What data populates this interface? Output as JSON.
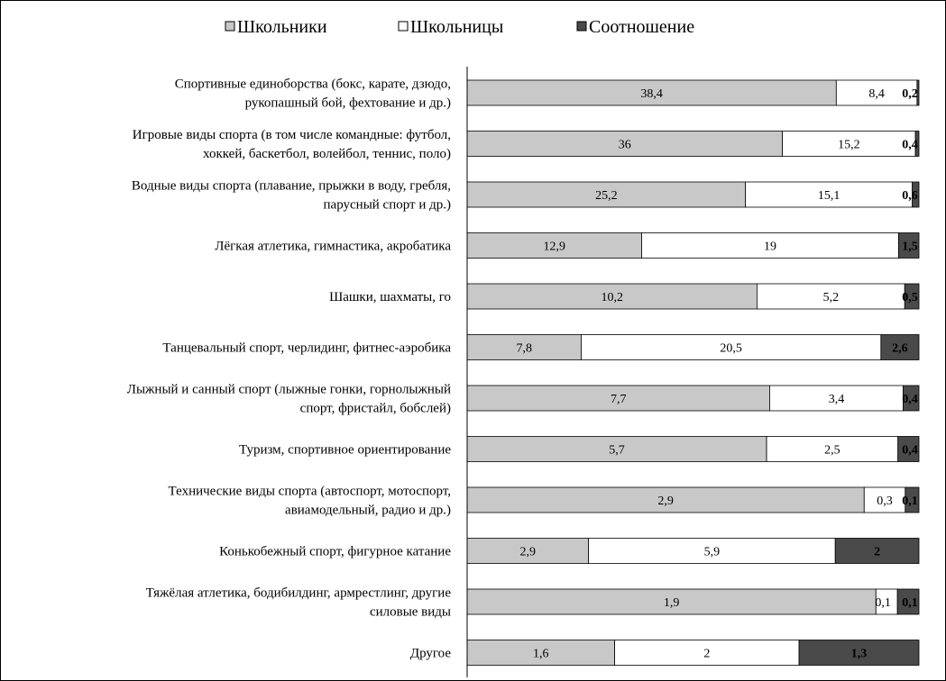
{
  "colors": {
    "boys": "#c8c8c8",
    "girls": "#ffffff",
    "ratio": "#4a4a4a",
    "stroke": "#000000",
    "axis": "#000000"
  },
  "legend": {
    "position": "top",
    "items": [
      {
        "key": "boys",
        "label": "Школьники"
      },
      {
        "key": "girls",
        "label": "Школьницы"
      },
      {
        "key": "ratio",
        "label": "Соотношение"
      }
    ]
  },
  "chart_data": {
    "type": "bar",
    "orientation": "horizontal",
    "stacked": "percent",
    "grid": false,
    "categories": [
      [
        "Спортивные единоборства (бокс, карате, дзюдо,",
        "рукопашный  бой, фехтование и др.)"
      ],
      [
        "Игровые виды спорта (в том числе командные: футбол,",
        "хоккей, баскетбол, волейбол,  теннис,  поло)"
      ],
      [
        "Водные виды спорта (плавание,  прыжки в воду, гребля,",
        "парусный спорт и др.)"
      ],
      [
        "Лёгкая атлетика, гимнастика,  акробатика"
      ],
      [
        "Шашки, шахматы, го"
      ],
      [
        "Танцевальный  спорт,  черлидинг, фитнес-аэробика"
      ],
      [
        "Лыжный и санный спорт (лыжные гонки, горнолыжный",
        "спорт, фристайл,  бобслей)"
      ],
      [
        "Туризм, спортивное  ориентирование"
      ],
      [
        "Технические виды спорта (автоспорт,  мотоспорт,",
        "авиамодельный, радио и др.)"
      ],
      [
        "Конькобежный  спорт, фигурное  катание"
      ],
      [
        "Тяжёлая атлетика, бодибилдинг,  армрестлинг, другие",
        "силовые виды"
      ],
      [
        "Другое"
      ]
    ],
    "series": [
      {
        "name": "Школьники",
        "key": "boys",
        "values": [
          38.4,
          36,
          25.2,
          12.9,
          10.2,
          7.8,
          7.7,
          5.7,
          2.9,
          2.9,
          1.9,
          1.6
        ],
        "labels": [
          "38,4",
          "36",
          "25,2",
          "12,9",
          "10,2",
          "7,8",
          "7,7",
          "5,7",
          "2,9",
          "2,9",
          "1,9",
          "1,6"
        ]
      },
      {
        "name": "Школьницы",
        "key": "girls",
        "values": [
          8.4,
          15.2,
          15.1,
          19,
          5.2,
          20.5,
          3.4,
          2.5,
          0.3,
          5.9,
          0.1,
          2
        ],
        "labels": [
          "8,4",
          "15,2",
          "15,1",
          "19",
          "5,2",
          "20,5",
          "3,4",
          "2,5",
          "0,3",
          "5,9",
          "0,1",
          "2"
        ]
      },
      {
        "name": "Соотношение",
        "key": "ratio",
        "values": [
          0.2,
          0.4,
          0.6,
          1.5,
          0.5,
          2.6,
          0.4,
          0.4,
          0.1,
          2,
          0.1,
          1.3
        ],
        "labels": [
          "0,2",
          "0,4",
          "0,6",
          "1,5",
          "0,5",
          "2,6",
          "0,4",
          "0,4",
          "0,1",
          "2",
          "0,1",
          "1,3"
        ]
      }
    ]
  }
}
